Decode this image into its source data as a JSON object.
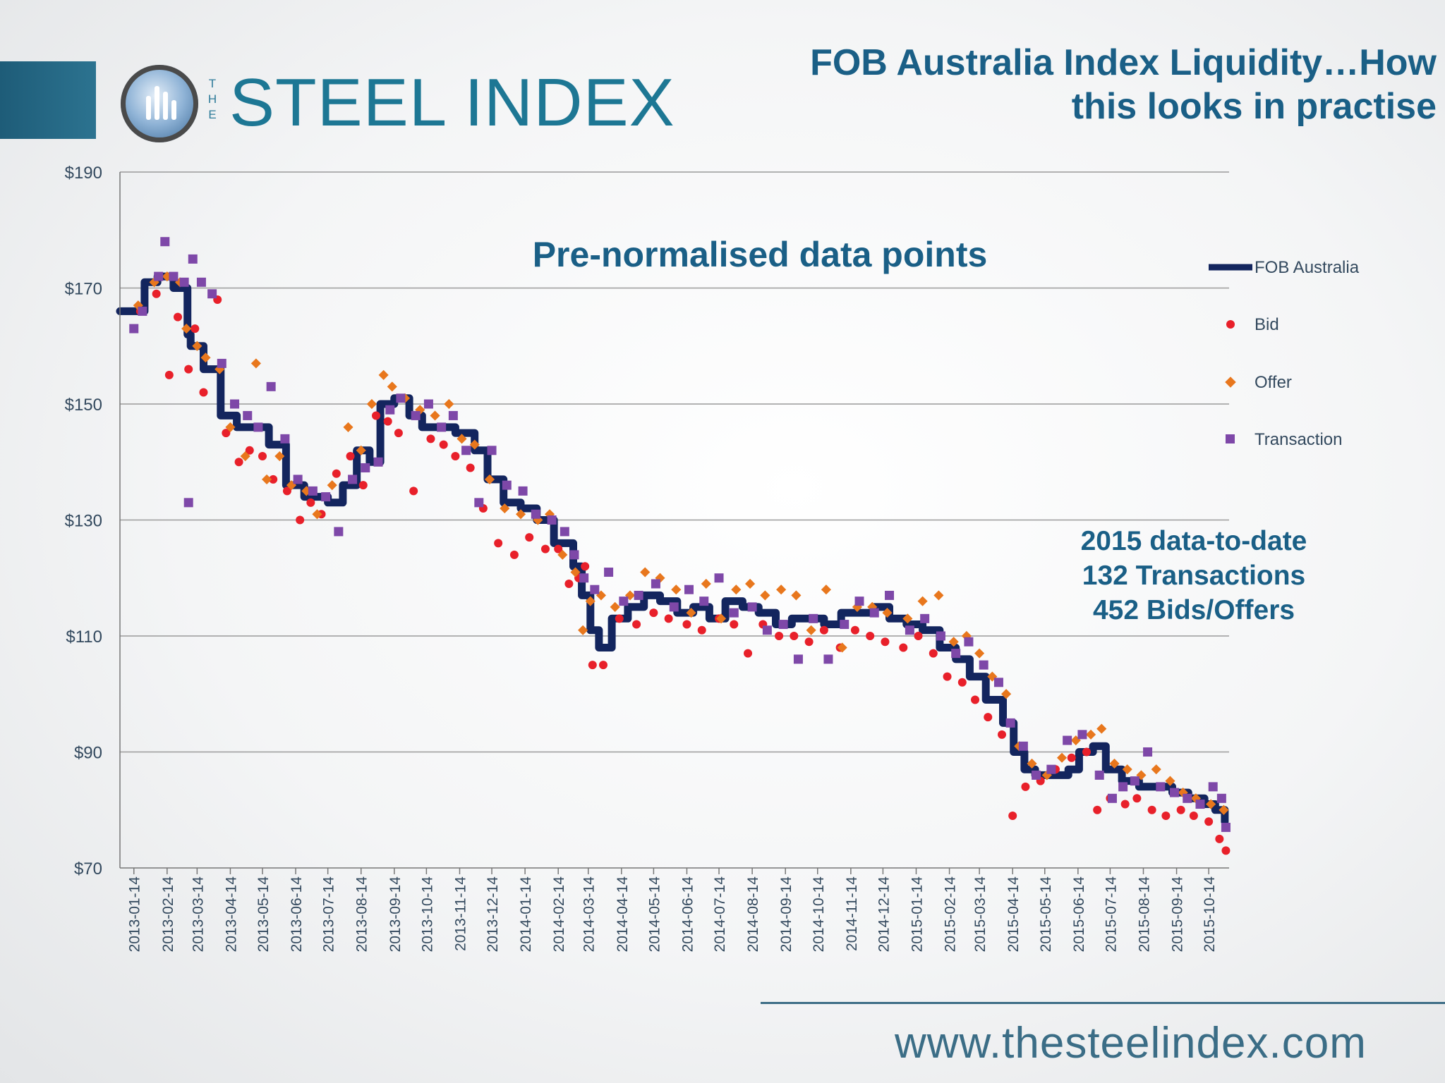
{
  "header": {
    "logo_the": "THE",
    "logo_name": "STEEL INDEX",
    "title_line1": "FOB Australia Index Liquidity…How",
    "title_line2": "this looks in practise"
  },
  "footer": {
    "url": "www.thesteelindex.com"
  },
  "colors": {
    "fob_line": "#13255e",
    "bid": "#e8202a",
    "offer": "#e8771d",
    "transaction": "#7e48a8",
    "title": "#1a5f86",
    "axis_text": "#33495e",
    "grid": "#9a9a9a"
  },
  "chart_data": {
    "type": "line",
    "title": "Pre-normalised data points",
    "annotation": [
      "2015 data-to-date",
      "132 Transactions",
      "452 Bids/Offers"
    ],
    "y_tick_labels": [
      "$70",
      "$90",
      "$110",
      "$130",
      "$150",
      "$170",
      "$190"
    ],
    "y_ticks": [
      70,
      90,
      110,
      130,
      150,
      170,
      190
    ],
    "ylim": [
      70,
      190
    ],
    "x_tick_labels": [
      "2013-01-14",
      "2013-02-14",
      "2013-03-14",
      "2013-04-14",
      "2013-05-14",
      "2013-06-14",
      "2013-07-14",
      "2013-08-14",
      "2013-09-14",
      "2013-10-14",
      "2013-11-14",
      "2013-12-14",
      "2014-01-14",
      "2014-02-14",
      "2014-03-14",
      "2014-04-14",
      "2014-05-14",
      "2014-06-14",
      "2014-07-14",
      "2014-08-14",
      "2014-09-14",
      "2014-10-14",
      "2014-11-14",
      "2014-12-14",
      "2015-01-14",
      "2015-02-14",
      "2015-03-14",
      "2015-04-14",
      "2015-05-14",
      "2015-06-14",
      "2015-07-14",
      "2015-08-14",
      "2015-09-14",
      "2015-10-14"
    ],
    "xlim": [
      "2013-01-01",
      "2015-11-02"
    ],
    "grid": "horizontal",
    "legend_position": "right",
    "legend": [
      "FOB Australia",
      "Bid",
      "Offer",
      "Transaction"
    ],
    "series": [
      {
        "name": "FOB Australia",
        "kind": "line",
        "x": [
          "2013-01-01",
          "2013-01-14",
          "2013-01-24",
          "2013-02-05",
          "2013-02-20",
          "2013-03-05",
          "2013-03-08",
          "2013-03-20",
          "2013-04-05",
          "2013-04-20",
          "2013-05-05",
          "2013-05-20",
          "2013-06-05",
          "2013-06-22",
          "2013-07-05",
          "2013-07-14",
          "2013-07-28",
          "2013-08-10",
          "2013-08-22",
          "2013-09-01",
          "2013-09-14",
          "2013-09-28",
          "2013-10-10",
          "2013-10-25",
          "2013-11-10",
          "2013-11-28",
          "2013-12-10",
          "2013-12-25",
          "2014-01-10",
          "2014-01-25",
          "2014-02-10",
          "2014-02-28",
          "2014-03-08",
          "2014-03-16",
          "2014-03-24",
          "2014-04-05",
          "2014-04-20",
          "2014-05-05",
          "2014-05-20",
          "2014-06-05",
          "2014-06-20",
          "2014-07-05",
          "2014-07-20",
          "2014-08-05",
          "2014-08-20",
          "2014-09-05",
          "2014-09-20",
          "2014-10-05",
          "2014-10-20",
          "2014-11-05",
          "2014-11-20",
          "2014-12-05",
          "2014-12-20",
          "2015-01-05",
          "2015-01-20",
          "2015-02-05",
          "2015-02-20",
          "2015-03-05",
          "2015-03-20",
          "2015-04-05",
          "2015-04-15",
          "2015-04-25",
          "2015-05-05",
          "2015-05-20",
          "2015-06-05",
          "2015-06-15",
          "2015-06-28",
          "2015-07-10",
          "2015-07-25",
          "2015-08-10",
          "2015-08-25",
          "2015-09-10",
          "2015-09-25",
          "2015-10-10",
          "2015-10-20",
          "2015-10-29"
        ],
        "values": [
          166,
          166,
          171,
          172,
          170,
          162,
          160,
          156,
          148,
          146,
          146,
          143,
          136,
          134,
          134,
          133,
          136,
          142,
          140,
          150,
          151,
          148,
          146,
          146,
          145,
          142,
          137,
          133,
          132,
          130,
          126,
          122,
          117,
          111,
          108,
          113,
          115,
          117,
          116,
          114,
          115,
          113,
          116,
          115,
          114,
          112,
          113,
          113,
          112,
          114,
          114,
          115,
          113,
          112,
          111,
          108,
          106,
          103,
          99,
          95,
          90,
          87,
          86,
          86,
          87,
          90,
          91,
          87,
          85,
          84,
          84,
          83,
          82,
          81,
          80,
          78
        ]
      },
      {
        "name": "Bid",
        "kind": "scatter",
        "x": [
          "2013-01-20",
          "2013-02-04",
          "2013-02-16",
          "2013-02-24",
          "2013-03-06",
          "2013-03-12",
          "2013-03-20",
          "2013-04-02",
          "2013-04-10",
          "2013-04-22",
          "2013-05-02",
          "2013-05-14",
          "2013-05-24",
          "2013-06-06",
          "2013-06-18",
          "2013-06-28",
          "2013-07-08",
          "2013-07-22",
          "2013-08-04",
          "2013-08-16",
          "2013-08-28",
          "2013-09-08",
          "2013-09-18",
          "2013-10-02",
          "2013-10-18",
          "2013-10-30",
          "2013-11-10",
          "2013-11-24",
          "2013-12-06",
          "2013-12-20",
          "2014-01-04",
          "2014-01-18",
          "2014-02-02",
          "2014-02-14",
          "2014-02-24",
          "2014-03-05",
          "2014-03-11",
          "2014-03-18",
          "2014-03-28",
          "2014-04-12",
          "2014-04-28",
          "2014-05-14",
          "2014-05-28",
          "2014-06-14",
          "2014-06-28",
          "2014-07-14",
          "2014-07-28",
          "2014-08-10",
          "2014-08-24",
          "2014-09-08",
          "2014-09-22",
          "2014-10-06",
          "2014-10-20",
          "2014-11-04",
          "2014-11-18",
          "2014-12-02",
          "2014-12-16",
          "2015-01-02",
          "2015-01-16",
          "2015-01-30",
          "2015-02-12",
          "2015-02-26",
          "2015-03-10",
          "2015-03-22",
          "2015-04-04",
          "2015-04-14",
          "2015-04-26",
          "2015-05-10",
          "2015-05-24",
          "2015-06-08",
          "2015-06-22",
          "2015-07-02",
          "2015-07-14",
          "2015-07-28",
          "2015-08-08",
          "2015-08-22",
          "2015-09-04",
          "2015-09-18",
          "2015-09-30",
          "2015-10-14",
          "2015-10-24",
          "2015-10-30"
        ],
        "values": [
          166,
          169,
          155,
          165,
          156,
          163,
          152,
          168,
          145,
          140,
          142,
          141,
          137,
          135,
          130,
          133,
          131,
          138,
          141,
          136,
          148,
          147,
          145,
          135,
          144,
          143,
          141,
          139,
          132,
          126,
          124,
          127,
          125,
          125,
          119,
          120,
          122,
          105,
          105,
          113,
          112,
          114,
          113,
          112,
          111,
          113,
          112,
          107,
          112,
          110,
          110,
          109,
          111,
          108,
          111,
          110,
          109,
          108,
          110,
          107,
          103,
          102,
          99,
          96,
          93,
          79,
          84,
          85,
          87,
          89,
          90,
          80,
          82,
          81,
          82,
          80,
          79,
          80,
          79,
          78,
          75,
          73
        ]
      },
      {
        "name": "Offer",
        "kind": "scatter",
        "x": [
          "2013-01-18",
          "2013-02-02",
          "2013-02-14",
          "2013-02-26",
          "2013-03-04",
          "2013-03-14",
          "2013-03-22",
          "2013-04-04",
          "2013-04-14",
          "2013-04-28",
          "2013-05-08",
          "2013-05-18",
          "2013-05-30",
          "2013-06-10",
          "2013-06-24",
          "2013-07-04",
          "2013-07-18",
          "2013-08-02",
          "2013-08-14",
          "2013-08-24",
          "2013-09-04",
          "2013-09-12",
          "2013-09-24",
          "2013-10-08",
          "2013-10-22",
          "2013-11-04",
          "2013-11-16",
          "2013-11-28",
          "2013-12-12",
          "2013-12-26",
          "2014-01-10",
          "2014-01-26",
          "2014-02-06",
          "2014-02-18",
          "2014-03-02",
          "2014-03-09",
          "2014-03-16",
          "2014-03-26",
          "2014-04-08",
          "2014-04-22",
          "2014-05-06",
          "2014-05-20",
          "2014-06-04",
          "2014-06-18",
          "2014-07-02",
          "2014-07-16",
          "2014-07-30",
          "2014-08-12",
          "2014-08-26",
          "2014-09-10",
          "2014-09-24",
          "2014-10-08",
          "2014-10-22",
          "2014-11-06",
          "2014-11-20",
          "2014-12-04",
          "2014-12-18",
          "2015-01-06",
          "2015-01-20",
          "2015-02-04",
          "2015-02-18",
          "2015-03-02",
          "2015-03-14",
          "2015-03-26",
          "2015-04-08",
          "2015-04-20",
          "2015-05-02",
          "2015-05-16",
          "2015-05-30",
          "2015-06-12",
          "2015-06-26",
          "2015-07-06",
          "2015-07-18",
          "2015-07-30",
          "2015-08-12",
          "2015-08-26",
          "2015-09-08",
          "2015-09-20",
          "2015-10-02",
          "2015-10-16",
          "2015-10-28"
        ],
        "values": [
          167,
          171,
          172,
          171,
          163,
          160,
          158,
          156,
          146,
          141,
          157,
          137,
          141,
          136,
          135,
          131,
          136,
          146,
          142,
          150,
          155,
          153,
          151,
          149,
          148,
          150,
          144,
          143,
          137,
          132,
          131,
          130,
          131,
          124,
          121,
          111,
          116,
          117,
          115,
          117,
          121,
          120,
          118,
          114,
          119,
          113,
          118,
          119,
          117,
          118,
          117,
          111,
          118,
          108,
          115,
          115,
          114,
          113,
          116,
          117,
          109,
          110,
          107,
          103,
          100,
          91,
          88,
          86,
          89,
          92,
          93,
          94,
          88,
          87,
          86,
          87,
          85,
          83,
          82,
          81,
          80
        ]
      },
      {
        "name": "Transaction",
        "kind": "scatter",
        "x": [
          "2013-01-14",
          "2013-01-22",
          "2013-02-06",
          "2013-02-12",
          "2013-02-20",
          "2013-03-02",
          "2013-03-06",
          "2013-03-10",
          "2013-03-18",
          "2013-03-28",
          "2013-04-06",
          "2013-04-18",
          "2013-04-30",
          "2013-05-10",
          "2013-05-22",
          "2013-06-04",
          "2013-06-16",
          "2013-06-30",
          "2013-07-12",
          "2013-07-24",
          "2013-08-06",
          "2013-08-18",
          "2013-08-30",
          "2013-09-10",
          "2013-09-20",
          "2013-10-04",
          "2013-10-16",
          "2013-10-28",
          "2013-11-08",
          "2013-11-20",
          "2013-12-02",
          "2013-12-14",
          "2013-12-28",
          "2014-01-12",
          "2014-01-24",
          "2014-02-08",
          "2014-02-20",
          "2014-03-01",
          "2014-03-10",
          "2014-03-20",
          "2014-04-02",
          "2014-04-16",
          "2014-04-30",
          "2014-05-16",
          "2014-06-02",
          "2014-06-16",
          "2014-06-30",
          "2014-07-14",
          "2014-07-28",
          "2014-08-14",
          "2014-08-28",
          "2014-09-12",
          "2014-09-26",
          "2014-10-10",
          "2014-10-24",
          "2014-11-08",
          "2014-11-22",
          "2014-12-06",
          "2014-12-20",
          "2015-01-08",
          "2015-01-22",
          "2015-02-06",
          "2015-02-20",
          "2015-03-04",
          "2015-03-18",
          "2015-04-01",
          "2015-04-12",
          "2015-04-24",
          "2015-05-06",
          "2015-05-20",
          "2015-06-04",
          "2015-06-18",
          "2015-07-04",
          "2015-07-16",
          "2015-07-26",
          "2015-08-06",
          "2015-08-18",
          "2015-08-30",
          "2015-09-12",
          "2015-09-24",
          "2015-10-06",
          "2015-10-18",
          "2015-10-26",
          "2015-10-30"
        ],
        "values": [
          163,
          166,
          172,
          178,
          172,
          171,
          133,
          175,
          171,
          169,
          157,
          150,
          148,
          146,
          153,
          144,
          137,
          135,
          134,
          128,
          137,
          139,
          140,
          149,
          151,
          148,
          150,
          146,
          148,
          142,
          133,
          142,
          136,
          135,
          131,
          130,
          128,
          124,
          120,
          118,
          121,
          116,
          117,
          119,
          115,
          118,
          116,
          120,
          114,
          115,
          111,
          112,
          106,
          113,
          106,
          112,
          116,
          114,
          117,
          111,
          113,
          110,
          107,
          109,
          105,
          102,
          95,
          91,
          86,
          87,
          92,
          93,
          86,
          82,
          84,
          85,
          90,
          84,
          83,
          82,
          81,
          84,
          82,
          77
        ]
      }
    ]
  }
}
